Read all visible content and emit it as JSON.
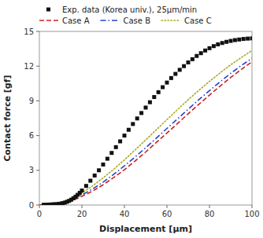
{
  "chart_data": {
    "type": "line",
    "title": "",
    "xlabel": "Displacement [μm]",
    "ylabel": "Contact force [gf]",
    "xlim": [
      0,
      100
    ],
    "ylim": [
      0,
      15
    ],
    "xticks": [
      0,
      20,
      40,
      60,
      80,
      100
    ],
    "yticks": [
      0,
      3,
      6,
      9,
      12,
      15
    ],
    "grid": false,
    "legend": "upper left",
    "series": [
      {
        "name": "Exp. data (Korea univ.), 25μm/min",
        "type": "scatter",
        "marker": "square",
        "color": "#111111",
        "x": [
          2,
          3,
          4,
          5,
          6,
          7,
          8,
          9,
          10,
          11,
          12,
          13,
          14,
          15,
          16,
          17,
          18,
          19,
          20,
          22,
          24,
          26,
          28,
          30,
          32,
          34,
          36,
          38,
          40,
          42,
          44,
          46,
          48,
          50,
          52,
          54,
          56,
          58,
          60,
          62,
          64,
          66,
          68,
          70,
          72,
          74,
          76,
          78,
          80,
          82,
          84,
          86,
          88,
          90,
          92,
          94,
          96,
          98,
          100
        ],
        "values": [
          0.02,
          0.02,
          0.03,
          0.04,
          0.05,
          0.06,
          0.07,
          0.09,
          0.12,
          0.16,
          0.21,
          0.28,
          0.36,
          0.46,
          0.58,
          0.72,
          0.88,
          1.05,
          1.25,
          1.65,
          2.1,
          2.55,
          3.0,
          3.5,
          4.0,
          4.5,
          5.0,
          5.5,
          6.0,
          6.5,
          7.0,
          7.48,
          7.95,
          8.42,
          8.88,
          9.33,
          9.75,
          10.18,
          10.58,
          10.97,
          11.33,
          11.68,
          12.0,
          12.32,
          12.6,
          12.88,
          13.12,
          13.35,
          13.55,
          13.73,
          13.88,
          14.0,
          14.1,
          14.18,
          14.25,
          14.3,
          14.35,
          14.38,
          14.4
        ]
      },
      {
        "name": "Case A",
        "type": "line",
        "line_style": "dashed",
        "color": "#cc2222",
        "x": [
          0,
          2,
          4,
          6,
          8,
          10,
          12,
          14,
          16,
          18,
          20,
          25,
          30,
          35,
          40,
          45,
          50,
          55,
          60,
          65,
          70,
          75,
          80,
          85,
          90,
          95,
          100
        ],
        "values": [
          0,
          0.01,
          0.03,
          0.06,
          0.1,
          0.15,
          0.22,
          0.32,
          0.44,
          0.58,
          0.75,
          1.2,
          1.75,
          2.38,
          3.05,
          3.8,
          4.58,
          5.4,
          6.22,
          7.05,
          7.88,
          8.7,
          9.5,
          10.28,
          11.02,
          11.72,
          12.38
        ]
      },
      {
        "name": "Case B",
        "type": "line",
        "line_style": "dashdot",
        "color": "#2244cc",
        "x": [
          0,
          2,
          4,
          6,
          8,
          10,
          12,
          14,
          16,
          18,
          20,
          25,
          30,
          35,
          40,
          45,
          50,
          55,
          60,
          65,
          70,
          75,
          80,
          85,
          90,
          95,
          100
        ],
        "values": [
          0,
          0.01,
          0.03,
          0.07,
          0.12,
          0.18,
          0.27,
          0.38,
          0.52,
          0.68,
          0.87,
          1.38,
          1.98,
          2.65,
          3.38,
          4.15,
          4.95,
          5.78,
          6.62,
          7.45,
          8.28,
          9.1,
          9.88,
          10.65,
          11.38,
          12.05,
          12.68
        ]
      },
      {
        "name": "Case C",
        "type": "line",
        "line_style": "dotted",
        "color": "#aaaa22",
        "x": [
          0,
          2,
          4,
          6,
          8,
          10,
          12,
          14,
          16,
          18,
          20,
          25,
          30,
          35,
          40,
          45,
          50,
          55,
          60,
          65,
          70,
          75,
          80,
          85,
          90,
          95,
          100
        ],
        "values": [
          0,
          0.01,
          0.04,
          0.08,
          0.14,
          0.22,
          0.33,
          0.47,
          0.63,
          0.82,
          1.04,
          1.65,
          2.35,
          3.1,
          3.9,
          4.75,
          5.62,
          6.5,
          7.38,
          8.25,
          9.1,
          9.9,
          10.68,
          11.42,
          12.12,
          12.75,
          13.35
        ]
      }
    ]
  }
}
